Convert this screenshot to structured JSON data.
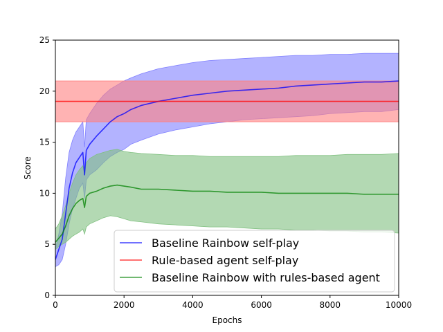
{
  "chart_data": {
    "type": "line",
    "title": "",
    "xlabel": "Epochs",
    "ylabel": "Score",
    "xlim": [
      0,
      10000
    ],
    "ylim": [
      0,
      25
    ],
    "x_ticks": [
      0,
      2000,
      4000,
      6000,
      8000,
      10000
    ],
    "y_ticks": [
      0,
      5,
      10,
      15,
      20,
      25
    ],
    "grid": false,
    "legend_placement": "lower-right",
    "series": [
      {
        "name": "Baseline Rainbow self-play",
        "color": "#0000ff",
        "band_color": "#8080ff",
        "x": [
          0,
          100,
          200,
          300,
          400,
          500,
          600,
          700,
          800,
          850,
          900,
          1000,
          1200,
          1400,
          1600,
          1800,
          2000,
          2200,
          2500,
          3000,
          3500,
          4000,
          4500,
          5000,
          5500,
          6000,
          6500,
          7000,
          7500,
          8000,
          8500,
          9000,
          9500,
          10000
        ],
        "mean": [
          3.5,
          4.5,
          5.5,
          8.0,
          10.5,
          12.0,
          13.0,
          13.5,
          14.0,
          11.8,
          14.2,
          14.8,
          15.6,
          16.3,
          17.0,
          17.5,
          17.8,
          18.2,
          18.6,
          19.0,
          19.3,
          19.6,
          19.8,
          20.0,
          20.1,
          20.2,
          20.3,
          20.5,
          20.6,
          20.7,
          20.8,
          20.9,
          20.9,
          21.0
        ],
        "lower": [
          2.8,
          3.0,
          3.5,
          5.0,
          7.0,
          8.5,
          9.5,
          10.5,
          11.0,
          9.5,
          11.3,
          11.8,
          12.3,
          13.0,
          13.6,
          14.0,
          14.3,
          14.8,
          15.2,
          15.8,
          16.2,
          16.5,
          16.8,
          17.0,
          17.2,
          17.3,
          17.4,
          17.5,
          17.6,
          17.8,
          17.9,
          18.0,
          18.0,
          18.2
        ],
        "upper": [
          4.5,
          6.0,
          8.0,
          11.5,
          14.0,
          15.2,
          16.0,
          16.5,
          17.0,
          14.5,
          17.2,
          17.8,
          18.8,
          19.6,
          20.2,
          20.6,
          21.0,
          21.3,
          21.7,
          22.2,
          22.5,
          22.8,
          23.0,
          23.1,
          23.2,
          23.3,
          23.4,
          23.5,
          23.5,
          23.6,
          23.6,
          23.7,
          23.7,
          23.7
        ]
      },
      {
        "name": "Rule-based agent self-play",
        "color": "#ff0000",
        "band_color": "#ff8080",
        "x": [
          0,
          10000
        ],
        "mean": [
          19,
          19
        ],
        "lower": [
          17,
          17
        ],
        "upper": [
          21,
          21
        ]
      },
      {
        "name": "Baseline Rainbow with rules-based agent",
        "color": "#008000",
        "band_color": "#80c080",
        "x": [
          0,
          100,
          200,
          300,
          400,
          500,
          600,
          700,
          800,
          850,
          900,
          1000,
          1200,
          1400,
          1600,
          1800,
          2000,
          2200,
          2500,
          3000,
          3500,
          4000,
          4500,
          5000,
          5500,
          6000,
          6500,
          7000,
          7500,
          8000,
          8500,
          9000,
          9500,
          10000
        ],
        "mean": [
          5.2,
          5.6,
          6.0,
          6.8,
          7.8,
          8.5,
          9.0,
          9.3,
          9.5,
          8.6,
          9.7,
          10.0,
          10.2,
          10.5,
          10.7,
          10.8,
          10.7,
          10.6,
          10.4,
          10.4,
          10.3,
          10.2,
          10.2,
          10.1,
          10.1,
          10.1,
          10.0,
          10.0,
          10.0,
          10.0,
          10.0,
          9.9,
          9.9,
          9.9
        ],
        "lower": [
          4.5,
          4.8,
          5.0,
          5.2,
          5.5,
          5.8,
          6.0,
          6.2,
          6.5,
          6.0,
          6.7,
          7.0,
          7.3,
          7.6,
          7.8,
          7.7,
          7.5,
          7.3,
          7.2,
          7.0,
          6.9,
          6.8,
          6.7,
          6.7,
          6.6,
          6.5,
          6.5,
          6.4,
          6.4,
          6.3,
          6.3,
          6.2,
          6.2,
          6.1
        ],
        "upper": [
          6.5,
          7.0,
          7.8,
          8.8,
          10.0,
          11.0,
          11.8,
          12.3,
          12.7,
          12.0,
          13.0,
          13.4,
          13.8,
          14.0,
          14.2,
          14.3,
          14.1,
          14.0,
          13.9,
          13.8,
          13.7,
          13.7,
          13.6,
          13.6,
          13.6,
          13.6,
          13.6,
          13.7,
          13.7,
          13.7,
          13.8,
          13.8,
          13.8,
          13.9
        ]
      }
    ]
  }
}
